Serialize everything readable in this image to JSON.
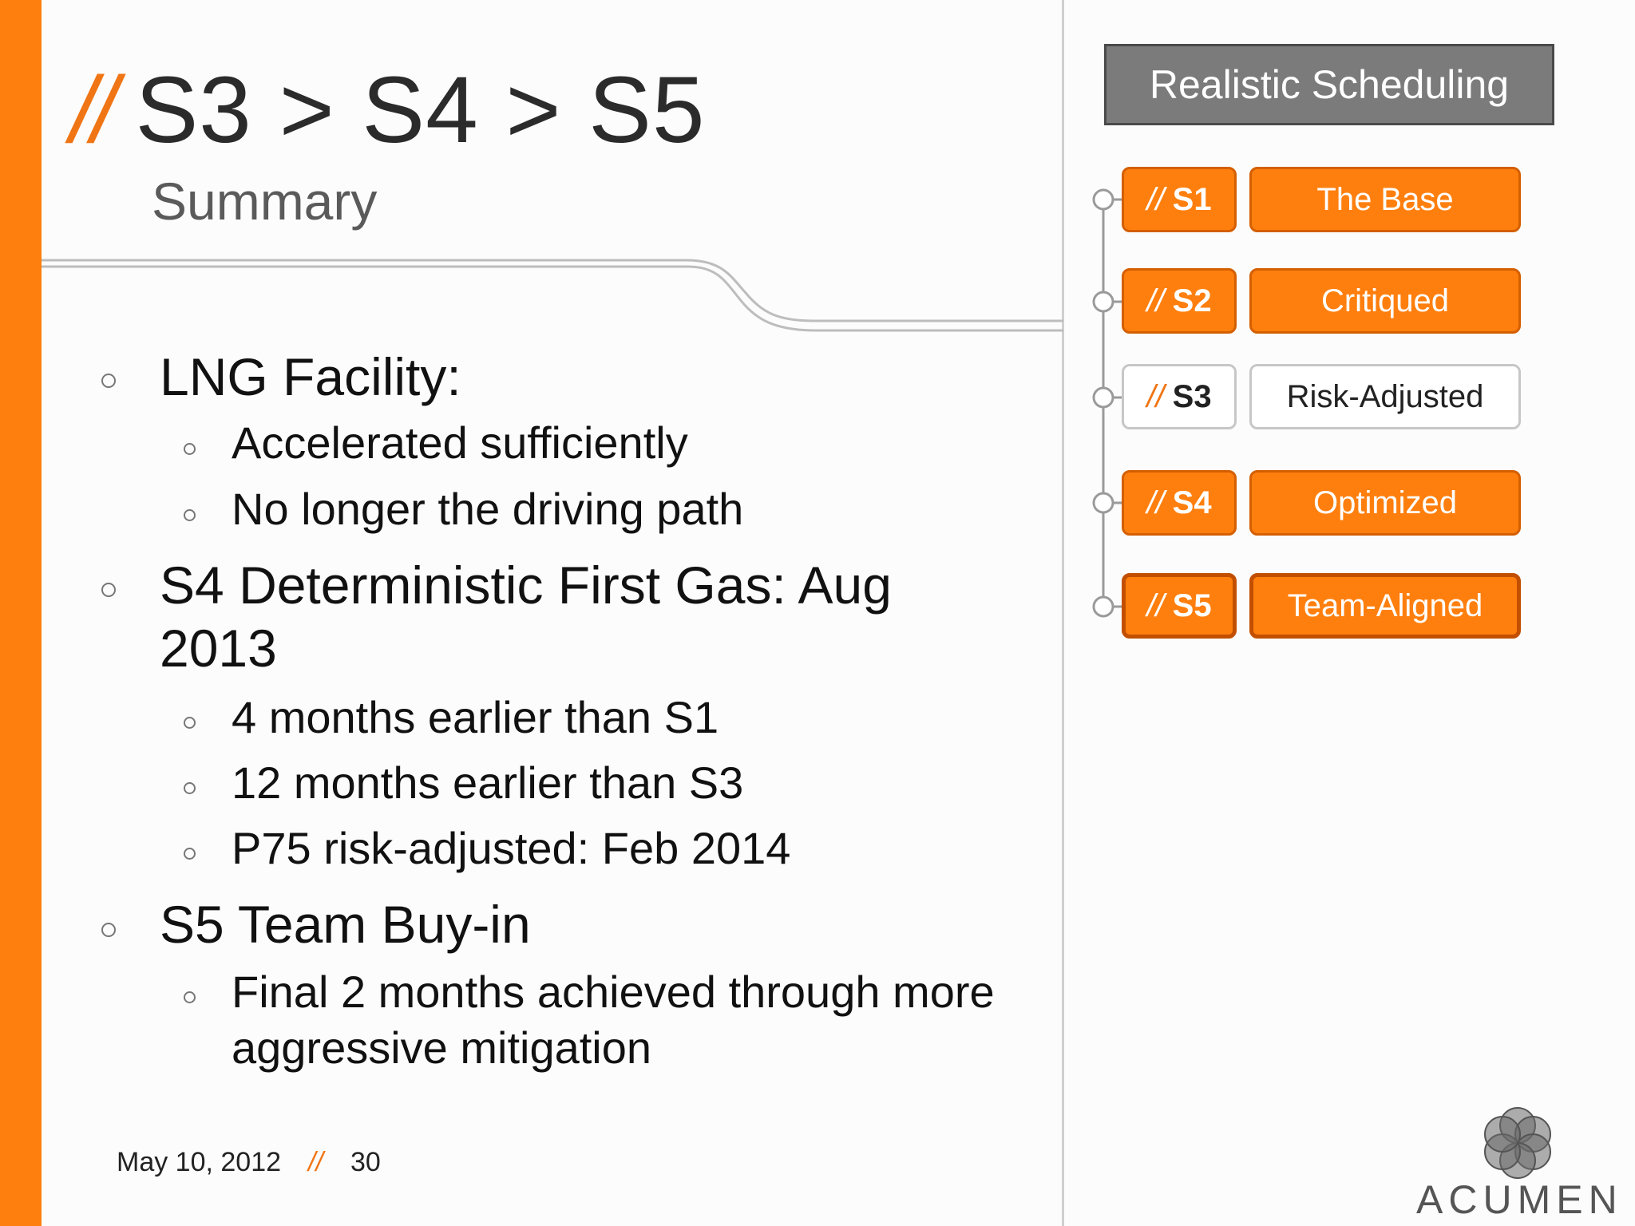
{
  "header": {
    "title_prefix": "//",
    "title": "S3 > S4 > S5",
    "subtitle": "Summary"
  },
  "bullets": [
    {
      "text": "LNG Facility:",
      "level": 1
    },
    {
      "text": "Accelerated sufficiently",
      "level": 2
    },
    {
      "text": "No longer the driving path",
      "level": 2
    },
    {
      "text": "S4 Deterministic First Gas: Aug",
      "level": 1
    },
    {
      "text": "2013",
      "level": 1
    },
    {
      "text": "4 months earlier than S1",
      "level": 2
    },
    {
      "text": "12 months earlier than S3",
      "level": 2
    },
    {
      "text": "P75 risk-adjusted: Feb 2014",
      "level": 2
    },
    {
      "text": "S5 Team Buy-in",
      "level": 1
    },
    {
      "text": "Final 2 months achieved through more",
      "level": 2
    },
    {
      "text": "aggressive mitigation",
      "level": 2
    }
  ],
  "footer": {
    "date": "May 10, 2012",
    "separator": "//",
    "page_number": "30"
  },
  "sidebar": {
    "heading": "Realistic Scheduling",
    "stages": [
      {
        "prefix": "//",
        "code": "S1",
        "label": "The Base",
        "active": true
      },
      {
        "prefix": "//",
        "code": "S2",
        "label": "Critiqued",
        "active": true
      },
      {
        "prefix": "//",
        "code": "S3",
        "label": "Risk-Adjusted",
        "active": false
      },
      {
        "prefix": "//",
        "code": "S4",
        "label": "Optimized",
        "active": true
      },
      {
        "prefix": "//",
        "code": "S5",
        "label": "Team-Aligned",
        "active": true,
        "selected": true
      }
    ]
  },
  "logo": {
    "wordmark": "ACUMEN"
  },
  "colors": {
    "accent_orange": "#ff7f0e",
    "title_text": "#2b2b2b",
    "heading_box": "#7b7b7b"
  }
}
